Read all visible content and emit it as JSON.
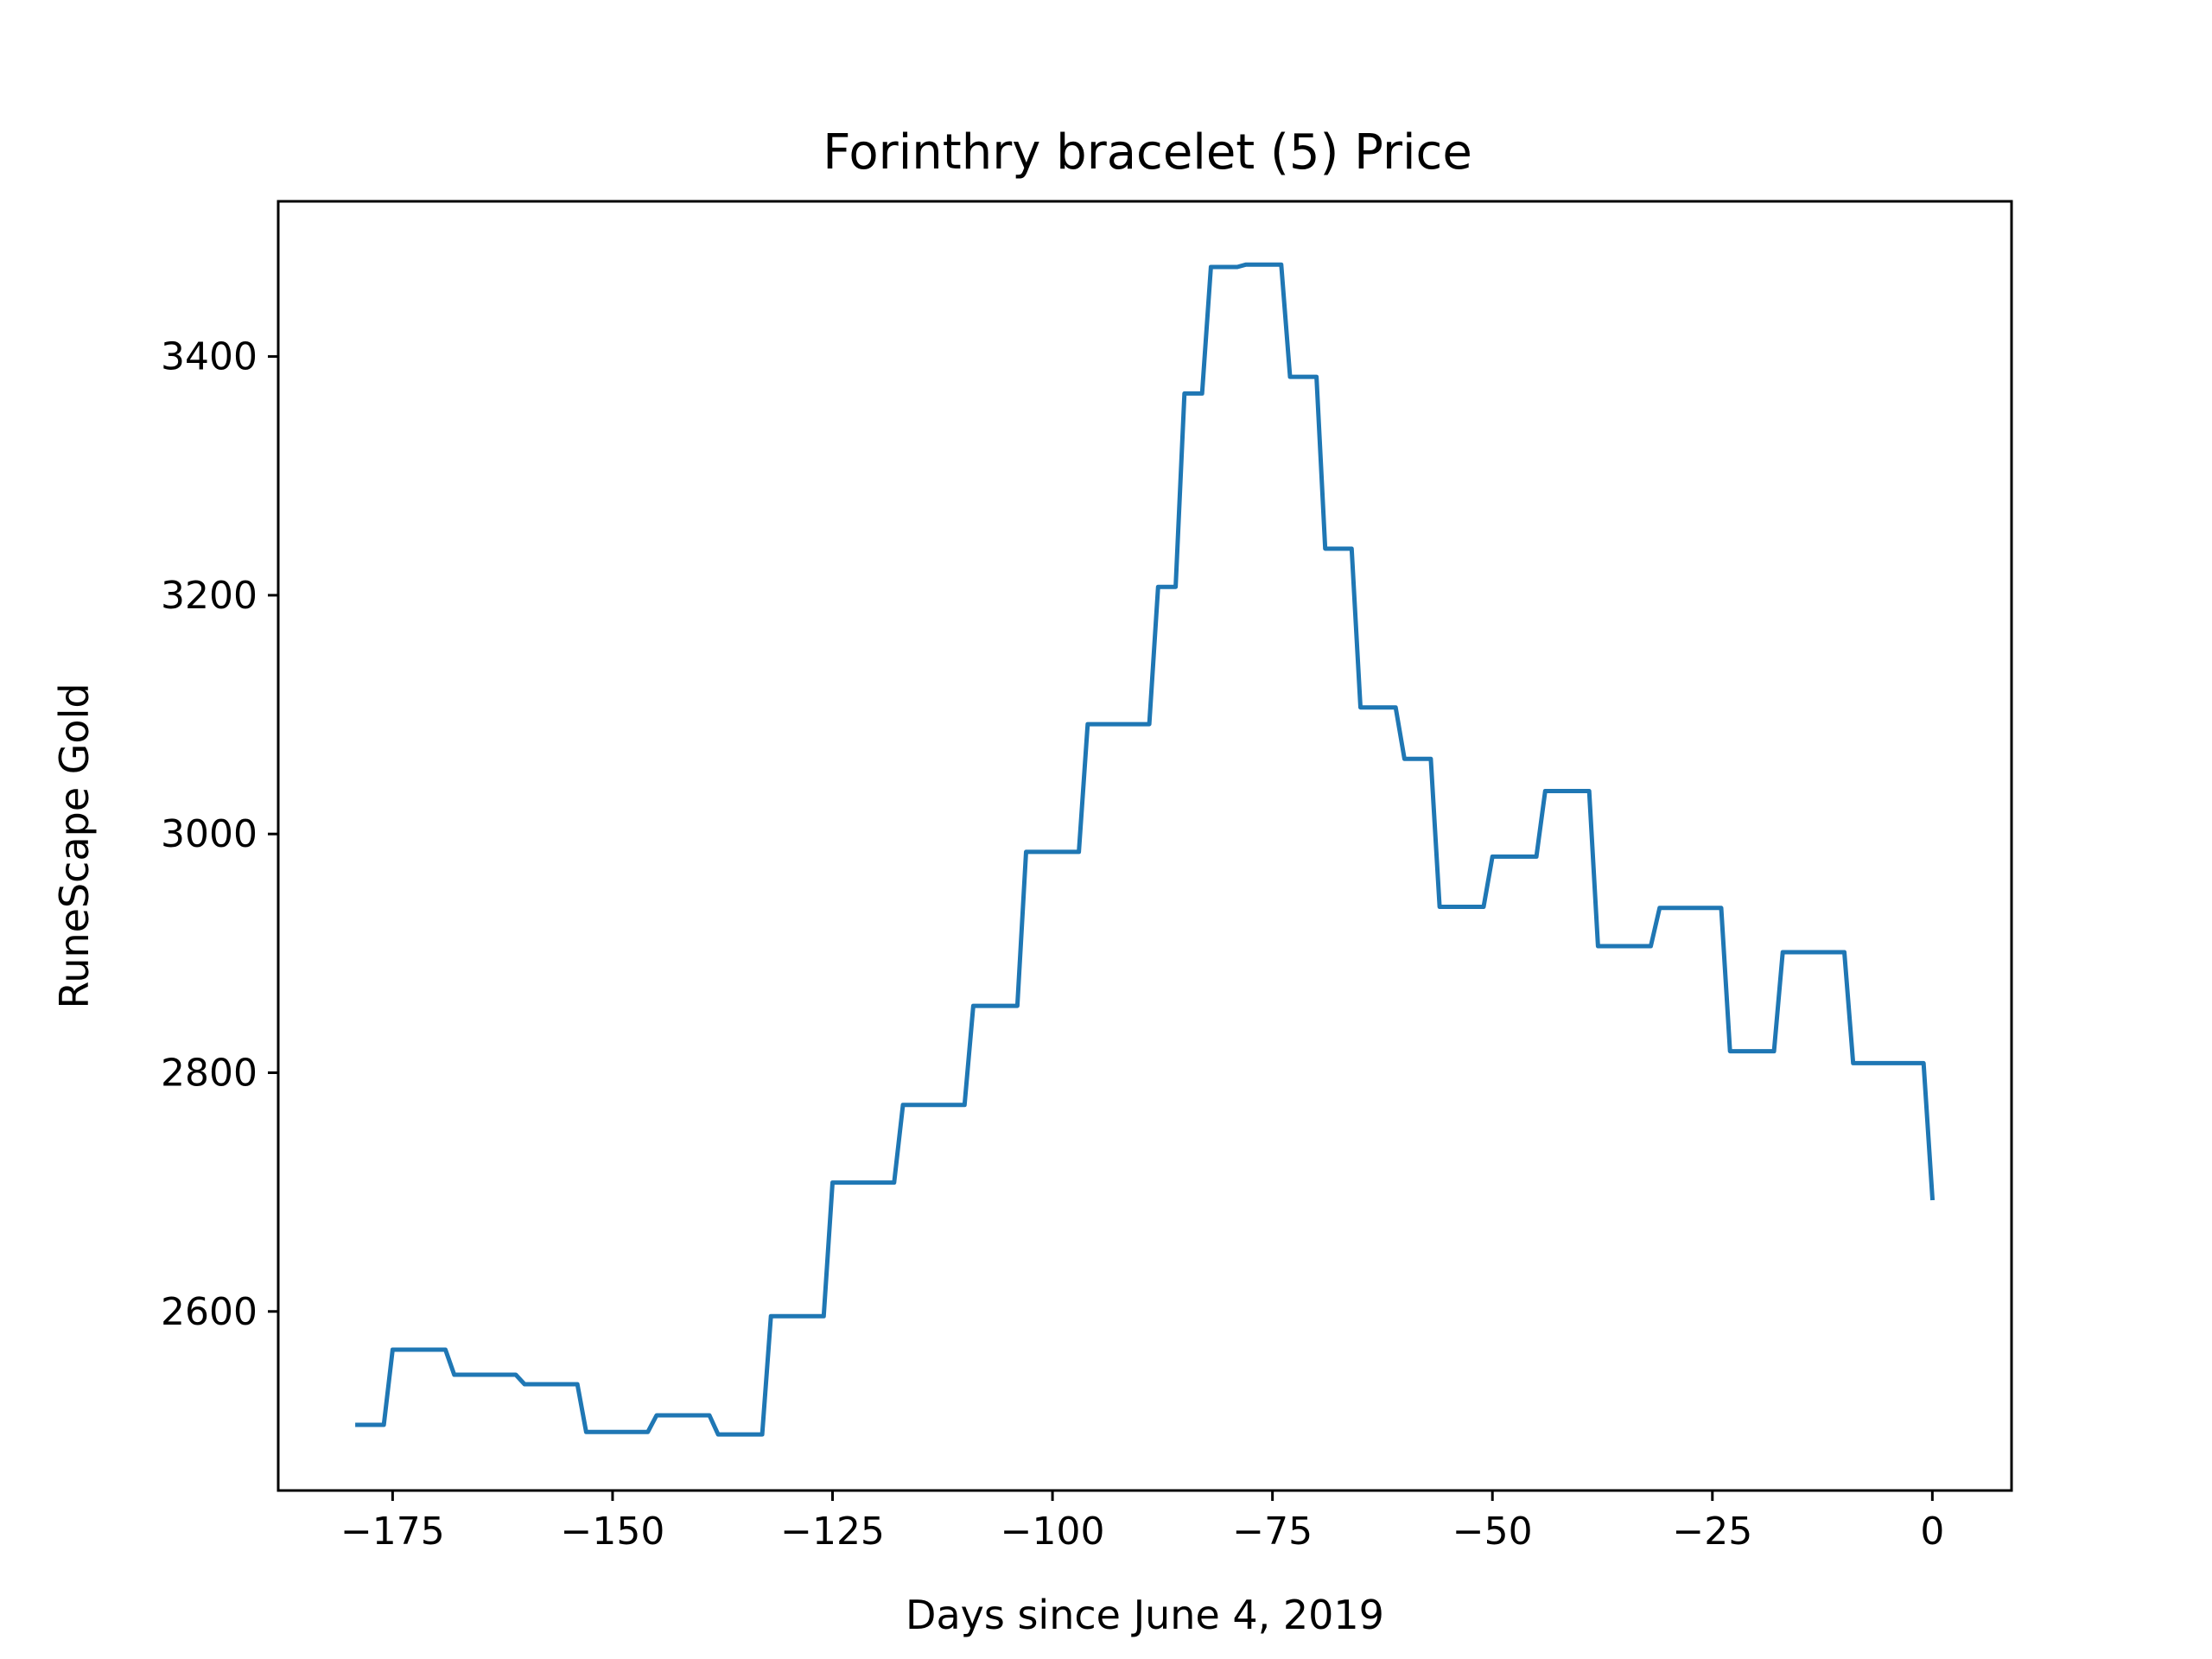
{
  "chart_data": {
    "type": "line",
    "title": "Forinthry bracelet (5) Price",
    "xlabel": "Days since June 4, 2019",
    "ylabel": "RuneScape Gold",
    "xlim": [
      -188,
      9
    ],
    "ylim": [
      2450,
      3530
    ],
    "xticks": [
      -175,
      -150,
      -125,
      -100,
      -75,
      -50,
      -25,
      0
    ],
    "xtick_labels": [
      "−175",
      "−150",
      "−125",
      "−100",
      "−75",
      "−50",
      "−25",
      "0"
    ],
    "yticks": [
      2600,
      2800,
      3000,
      3200,
      3400
    ],
    "ytick_labels": [
      "2600",
      "2800",
      "3000",
      "3200",
      "3400"
    ],
    "grid": false,
    "line_color": "#1f77b4",
    "series": [
      {
        "x": [
          -179,
          -176,
          -175,
          -169,
          -168,
          -161,
          -160,
          -154,
          -153,
          -146,
          -145,
          -139,
          -138,
          -133,
          -132,
          -126,
          -125,
          -118,
          -117,
          -110,
          -109,
          -104,
          -103,
          -97,
          -96,
          -89,
          -88,
          -86,
          -85,
          -83,
          -82,
          -79,
          -78,
          -74,
          -73,
          -70,
          -69,
          -66,
          -65,
          -61,
          -60,
          -57,
          -56,
          -51,
          -50,
          -45,
          -44,
          -39,
          -38,
          -32,
          -31,
          -24,
          -23,
          -18,
          -17,
          -10,
          -9,
          -1,
          0
        ],
        "y": [
          2505,
          2505,
          2568,
          2568,
          2547,
          2547,
          2539,
          2539,
          2499,
          2499,
          2513,
          2513,
          2497,
          2497,
          2596,
          2596,
          2708,
          2708,
          2773,
          2773,
          2856,
          2856,
          2985,
          2985,
          3092,
          3092,
          3207,
          3207,
          3369,
          3369,
          3475,
          3475,
          3477,
          3477,
          3383,
          3383,
          3239,
          3239,
          3106,
          3106,
          3063,
          3063,
          2939,
          2939,
          2981,
          2981,
          3036,
          3036,
          2906,
          2906,
          2938,
          2938,
          2818,
          2818,
          2901,
          2901,
          2808,
          2808,
          2695
        ]
      }
    ]
  }
}
